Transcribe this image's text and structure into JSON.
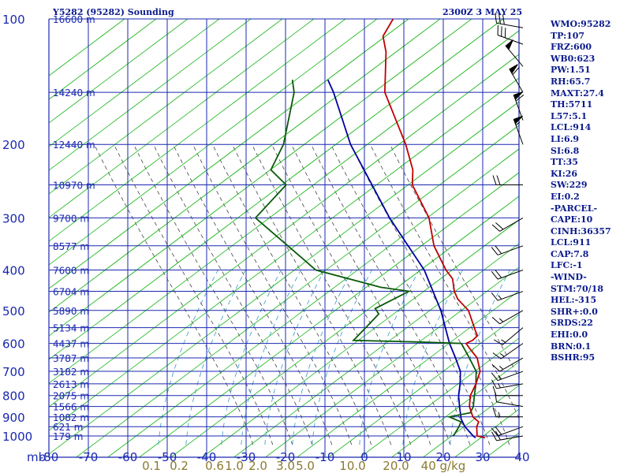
{
  "header": {
    "station": "Y5282 (95282) Sounding",
    "time": "2300Z  3 MAY 25"
  },
  "stats": [
    "WMO:95282",
    "TP:107",
    "FRZ:600",
    "WB0:623",
    "PW:1.51",
    "RH:65.7",
    "MAXT:27.4",
    "TH:5711",
    "L57:5.1",
    "LCL:914",
    "LI:6.9",
    "SI:6.8",
    "TT:35",
    "KI:26",
    "SW:229",
    "EI:0.2",
    "-PARCEL-",
    "CAPE:10",
    "CINH:36357",
    "LCL:911",
    "CAP:7.8",
    "LFC:-1",
    "-WIND-",
    "STM:70/18",
    "HEL:-315",
    "SHR+:0.0",
    "SRDS:22",
    "EHI:0.0",
    "BRN:0.1",
    "BSHR:95"
  ],
  "colors": {
    "temperature": "#c00000",
    "dewpoint": "#0a5a0a",
    "parcel": "#0000a0",
    "grid": "#1a28b0",
    "dry_adiabat": "#22b822",
    "moist_adiabat": "#444444",
    "mixing_ratio": "#3399cc",
    "wind": "#000000"
  },
  "chart_data": {
    "type": "line",
    "title": "Y5282 (95282) Sounding",
    "subtitle": "2300Z  3 MAY 25",
    "pressure_unit": "mb",
    "mixing_ratio_unit": "g/kg",
    "pressure_labels": [
      "100",
      "200",
      "300",
      "400",
      "500",
      "600",
      "700",
      "800",
      "900",
      "1000"
    ],
    "pressure_levels": [
      100,
      200,
      300,
      400,
      500,
      600,
      700,
      800,
      900,
      1000
    ],
    "temperature_ticks": [
      -80,
      -70,
      -60,
      -50,
      -40,
      -30,
      -20,
      -10,
      0,
      10,
      20,
      30,
      40
    ],
    "temperature_labels": [
      "-80",
      "-70",
      "-60",
      "-50",
      "-40",
      "-30",
      "-20",
      "-10",
      "0",
      "10",
      "20",
      "30",
      "40"
    ],
    "mixing_ratio_labels": [
      {
        "label": "0.1",
        "t": -54
      },
      {
        "label": "0.2",
        "t": -47
      },
      {
        "label": "0.6",
        "t": -38
      },
      {
        "label": "1.0",
        "t": -33
      },
      {
        "label": "2.0",
        "t": -27
      },
      {
        "label": "3.0",
        "t": -20
      },
      {
        "label": "5.0",
        "t": -15
      },
      {
        "label": "10.0",
        "t": -3
      },
      {
        "label": "20.0",
        "t": 8
      },
      {
        "label": "40 g/kg",
        "t": 20
      }
    ],
    "height_labels": [
      {
        "p": 100,
        "label": "16600 m"
      },
      {
        "p": 150,
        "label": "14240 m"
      },
      {
        "p": 200,
        "label": "12440 m"
      },
      {
        "p": 250,
        "label": "10970 m"
      },
      {
        "p": 300,
        "label": "9700 m"
      },
      {
        "p": 350,
        "label": "8577 m"
      },
      {
        "p": 400,
        "label": "7600 m"
      },
      {
        "p": 450,
        "label": "6704 m"
      },
      {
        "p": 500,
        "label": "5890 m"
      },
      {
        "p": 550,
        "label": "5134 m"
      },
      {
        "p": 600,
        "label": "4437 m"
      },
      {
        "p": 650,
        "label": "3787 m"
      },
      {
        "p": 700,
        "label": "3182 m"
      },
      {
        "p": 750,
        "label": "2613 m"
      },
      {
        "p": 800,
        "label": "2075 m"
      },
      {
        "p": 850,
        "label": "1566 m"
      },
      {
        "p": 900,
        "label": "1082 m"
      },
      {
        "p": 950,
        "label": "621 m"
      },
      {
        "p": 1000,
        "label": "179 m"
      }
    ],
    "temperature_profile": [
      [
        1010,
        27.4
      ],
      [
        1000,
        25
      ],
      [
        950,
        23
      ],
      [
        925,
        22.5
      ],
      [
        900,
        20
      ],
      [
        850,
        17
      ],
      [
        800,
        15
      ],
      [
        750,
        14
      ],
      [
        700,
        12.5
      ],
      [
        650,
        9
      ],
      [
        620,
        5.5
      ],
      [
        600,
        3.2
      ],
      [
        590,
        4.2
      ],
      [
        575,
        4.5
      ],
      [
        560,
        3
      ],
      [
        500,
        -3
      ],
      [
        470,
        -8
      ],
      [
        450,
        -10.5
      ],
      [
        420,
        -13.5
      ],
      [
        400,
        -17
      ],
      [
        350,
        -25
      ],
      [
        300,
        -32
      ],
      [
        250,
        -43
      ],
      [
        230,
        -46
      ],
      [
        200,
        -53
      ],
      [
        150,
        -69
      ],
      [
        120,
        -77
      ],
      [
        110,
        -81
      ],
      [
        100,
        -82
      ]
    ],
    "dewpoint_profile": [
      [
        1000,
        19
      ],
      [
        950,
        18.5
      ],
      [
        925,
        18
      ],
      [
        900,
        14
      ],
      [
        880,
        18.5
      ],
      [
        850,
        18
      ],
      [
        800,
        16
      ],
      [
        750,
        14
      ],
      [
        700,
        11.5
      ],
      [
        650,
        7
      ],
      [
        600,
        2
      ],
      [
        595,
        -10
      ],
      [
        590,
        -26
      ],
      [
        550,
        -25.5
      ],
      [
        510,
        -25
      ],
      [
        495,
        -27
      ],
      [
        450,
        -22
      ],
      [
        440,
        -30
      ],
      [
        400,
        -50
      ],
      [
        300,
        -76
      ],
      [
        250,
        -75
      ],
      [
        230,
        -82
      ],
      [
        200,
        -84
      ],
      [
        150,
        -92
      ],
      [
        140,
        -95
      ]
    ],
    "parcel_profile": [
      [
        1010,
        25
      ],
      [
        1000,
        24
      ],
      [
        950,
        20
      ],
      [
        911,
        17.5
      ],
      [
        850,
        14.5
      ],
      [
        800,
        12
      ],
      [
        750,
        10
      ],
      [
        700,
        7.5
      ],
      [
        650,
        3.5
      ],
      [
        600,
        -1
      ],
      [
        500,
        -10
      ],
      [
        400,
        -22.5
      ],
      [
        300,
        -42
      ],
      [
        200,
        -67
      ],
      [
        150,
        -82
      ],
      [
        140,
        -86
      ]
    ],
    "wind_barbs": [
      {
        "p": 1000,
        "dir": 260,
        "spd": 20
      },
      {
        "p": 950,
        "dir": 250,
        "spd": 20
      },
      {
        "p": 900,
        "dir": 270,
        "spd": 15
      },
      {
        "p": 850,
        "dir": 280,
        "spd": 10
      },
      {
        "p": 800,
        "dir": 270,
        "spd": 10
      },
      {
        "p": 750,
        "dir": 260,
        "spd": 15
      },
      {
        "p": 700,
        "dir": 250,
        "spd": 15
      },
      {
        "p": 650,
        "dir": 240,
        "spd": 15
      },
      {
        "p": 600,
        "dir": 235,
        "spd": 15
      },
      {
        "p": 550,
        "dir": 230,
        "spd": 15
      },
      {
        "p": 500,
        "dir": 240,
        "spd": 15
      },
      {
        "p": 450,
        "dir": 250,
        "spd": 15
      },
      {
        "p": 400,
        "dir": 250,
        "spd": 20
      },
      {
        "p": 350,
        "dir": 250,
        "spd": 20
      },
      {
        "p": 300,
        "dir": 240,
        "spd": 20
      },
      {
        "p": 250,
        "dir": 270,
        "spd": 20
      },
      {
        "p": 200,
        "dir": 340,
        "spd": 55
      },
      {
        "p": 175,
        "dir": 340,
        "spd": 60
      },
      {
        "p": 150,
        "dir": 330,
        "spd": 60
      },
      {
        "p": 130,
        "dir": 320,
        "spd": 50
      },
      {
        "p": 115,
        "dir": 290,
        "spd": 30
      },
      {
        "p": 105,
        "dir": 280,
        "spd": 30
      }
    ]
  }
}
